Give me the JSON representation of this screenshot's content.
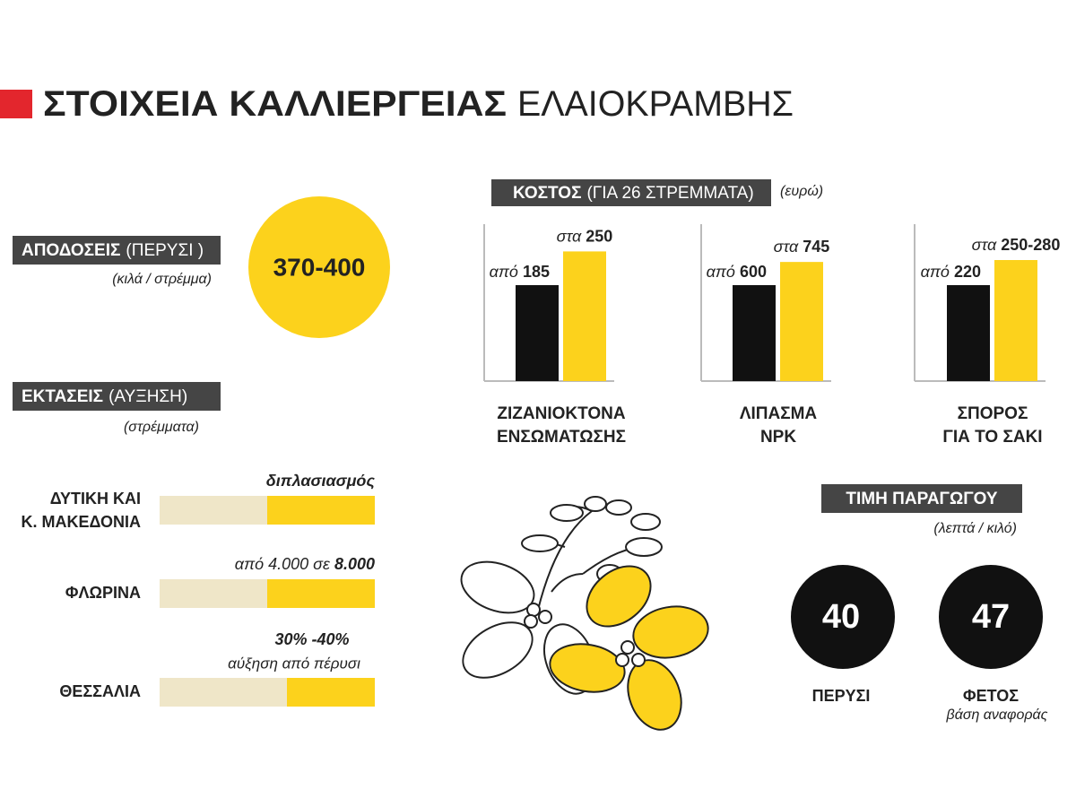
{
  "header": {
    "title_bold": "ΣΤΟΙΧΕΙΑ ΚΑΛΛΙΕΡΓΕΙΑΣ",
    "title_light": "ΕΛΑΙΟΚΡΑΜΒΗΣ"
  },
  "yields": {
    "label_bold": "ΑΠΟΔΟΣΕΙΣ",
    "label_light": "(ΠΕΡΥΣΙ )",
    "unit": "(κιλά / στρέμμα)",
    "value": "370-400"
  },
  "areas": {
    "label_bold": "ΕΚΤΑΣΕΙΣ",
    "label_light": "(ΑΥΞΗΣΗ)",
    "unit": "(στρέμματα)",
    "rows": [
      {
        "region": [
          "ΔΥΤΙΚΗ ΚΑΙ",
          "Κ. ΜΑΚΕΔΟΝΙΑ"
        ],
        "note_bold": "διπλασιασμός"
      },
      {
        "region": [
          "ΦΛΩΡΙΝΑ"
        ],
        "note_light": "από 4.000 σε",
        "note_bold": "8.000"
      },
      {
        "region": [
          "ΘΕΣΣΑΛΙΑ"
        ],
        "note_bold": "30% -40%",
        "note_light": "αύξηση από πέρυσι"
      }
    ]
  },
  "cost": {
    "label_bold": "ΚΟΣΤΟΣ",
    "label_light": "(ΓΙΑ 26 ΣΤΡΕΜΜΑΤΑ)",
    "unit": "(ευρώ)",
    "groups": [
      {
        "name": [
          "ΖΙΖΑΝΙΟΚΤΟΝΑ",
          "ΕΝΣΩΜΑΤΩΣΗΣ"
        ],
        "from_prefix": "από",
        "from": 185,
        "to_prefix": "στα",
        "to": 250
      },
      {
        "name": [
          "ΛΙΠΑΣΜΑ",
          "NPK"
        ],
        "from_prefix": "από",
        "from": 600,
        "to_prefix": "στα",
        "to": 745
      },
      {
        "name": [
          "ΣΠΟΡΟΣ",
          "ΓΙΑ ΤΟ ΣΑΚΙ"
        ],
        "from_prefix": "από",
        "from": 220,
        "to_prefix": "στα",
        "to": "250-280"
      }
    ]
  },
  "price": {
    "label": "ΤΙΜΗ ΠΑΡΑΓΩΓΟΥ",
    "unit": "(λεπτά / κιλό)",
    "items": [
      {
        "value": 40,
        "label": "ΠΕΡΥΣΙ"
      },
      {
        "value": 47,
        "label": "ΦΕΤΟΣ",
        "note": "βάση αναφοράς"
      }
    ]
  }
}
